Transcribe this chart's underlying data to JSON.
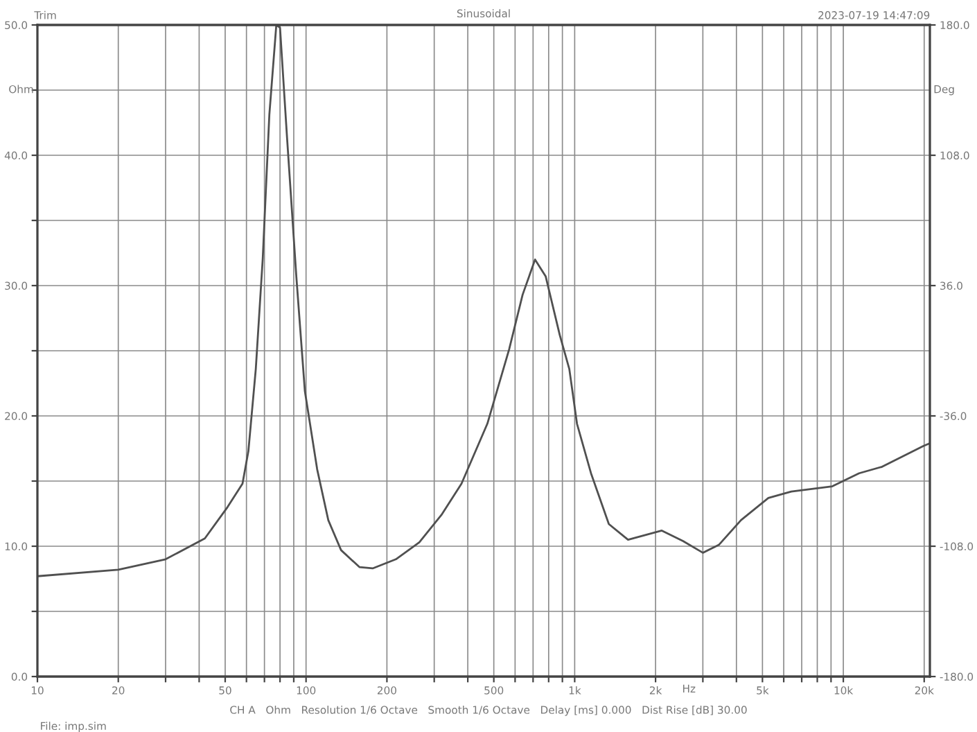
{
  "chart_data": {
    "type": "line",
    "title": "Sinusoidal",
    "xlabel": "Hz",
    "ylabel": "Ohm",
    "y2label": "Deg",
    "annotations": [
      "Trim",
      "2023-07-19 14:47:09",
      "CH A   Ohm   Resolution 1/6 Octave   Smooth 1/6 Octave   Delay [ms] 0.000   Dist Rise [dB] 30.00",
      "File: imp.sim"
    ],
    "log": "x",
    "grid": true,
    "marker": "none",
    "line_style": "solid",
    "xlim": [
      10,
      21000
    ],
    "xticks": [
      10,
      20,
      {
        "value": 30,
        "label": null
      },
      {
        "value": 40,
        "label": null
      },
      50,
      {
        "value": 60,
        "label": null
      },
      {
        "value": 70,
        "label": null
      },
      {
        "value": 80,
        "label": null
      },
      {
        "value": 90,
        "label": null
      },
      100,
      200,
      {
        "value": 300,
        "label": null
      },
      {
        "value": 400,
        "label": null
      },
      500,
      {
        "value": 600,
        "label": null
      },
      {
        "value": 700,
        "label": null
      },
      {
        "value": 800,
        "label": null
      },
      {
        "value": 900,
        "label": null
      },
      {
        "value": 1000,
        "label": "1k"
      },
      {
        "value": 2000,
        "label": "2k"
      },
      {
        "value": 3000,
        "label": null
      },
      {
        "value": 4000,
        "label": null
      },
      {
        "value": 5000,
        "label": "5k"
      },
      {
        "value": 6000,
        "label": null
      },
      {
        "value": 7000,
        "label": null
      },
      {
        "value": 8000,
        "label": null
      },
      {
        "value": 9000,
        "label": null
      },
      {
        "value": 10000,
        "label": "10k"
      },
      {
        "value": 20000,
        "label": "20k"
      }
    ],
    "ylim": [
      0,
      50
    ],
    "yticks": [
      {
        "value": 0,
        "label": "0.0"
      },
      {
        "value": 5,
        "label": null
      },
      {
        "value": 10,
        "label": "10.0"
      },
      {
        "value": 15,
        "label": null
      },
      {
        "value": 20,
        "label": "20.0"
      },
      {
        "value": 25,
        "label": null
      },
      {
        "value": 30,
        "label": "30.0"
      },
      {
        "value": 35,
        "label": null
      },
      {
        "value": 40,
        "label": "40.0"
      },
      {
        "value": 45,
        "label": null
      },
      {
        "value": 50,
        "label": "50.0"
      }
    ],
    "y2lim": [
      -180,
      180
    ],
    "y2ticks": [
      {
        "value": -180,
        "label": "-180.0"
      },
      {
        "value": -108,
        "label": "-108.0"
      },
      {
        "value": -36,
        "label": "-36.0"
      },
      {
        "value": 36,
        "label": "36.0"
      },
      {
        "value": 108,
        "label": "108.0"
      },
      {
        "value": 180,
        "label": "180.0"
      }
    ],
    "series": [
      {
        "color": "#505050",
        "x": [
          10,
          20,
          30,
          42,
          51,
          58,
          61,
          65,
          69,
          73,
          77.5,
          80,
          85,
          92,
          99,
          110,
          121,
          135,
          158,
          177,
          216,
          264,
          319,
          379,
          473,
          570,
          640,
          712,
          780,
          880,
          955,
          1020,
          1150,
          1340,
          1580,
          2110,
          2530,
          3000,
          3440,
          4160,
          5260,
          6400,
          9100,
          11450,
          13950,
          19900,
          21000
        ],
        "values": [
          7.7,
          8.2,
          9.0,
          10.6,
          13.0,
          14.8,
          17.3,
          23.6,
          32.1,
          43.1,
          50.0,
          49.8,
          41.3,
          30.7,
          21.9,
          15.9,
          12.0,
          9.7,
          8.4,
          8.3,
          9.0,
          10.3,
          12.4,
          14.8,
          19.4,
          25.1,
          29.3,
          32.0,
          30.7,
          26.2,
          23.6,
          19.4,
          15.6,
          11.7,
          10.5,
          11.2,
          10.4,
          9.5,
          10.1,
          12.0,
          13.7,
          14.2,
          14.6,
          15.6,
          16.1,
          17.7,
          17.9
        ]
      }
    ]
  }
}
